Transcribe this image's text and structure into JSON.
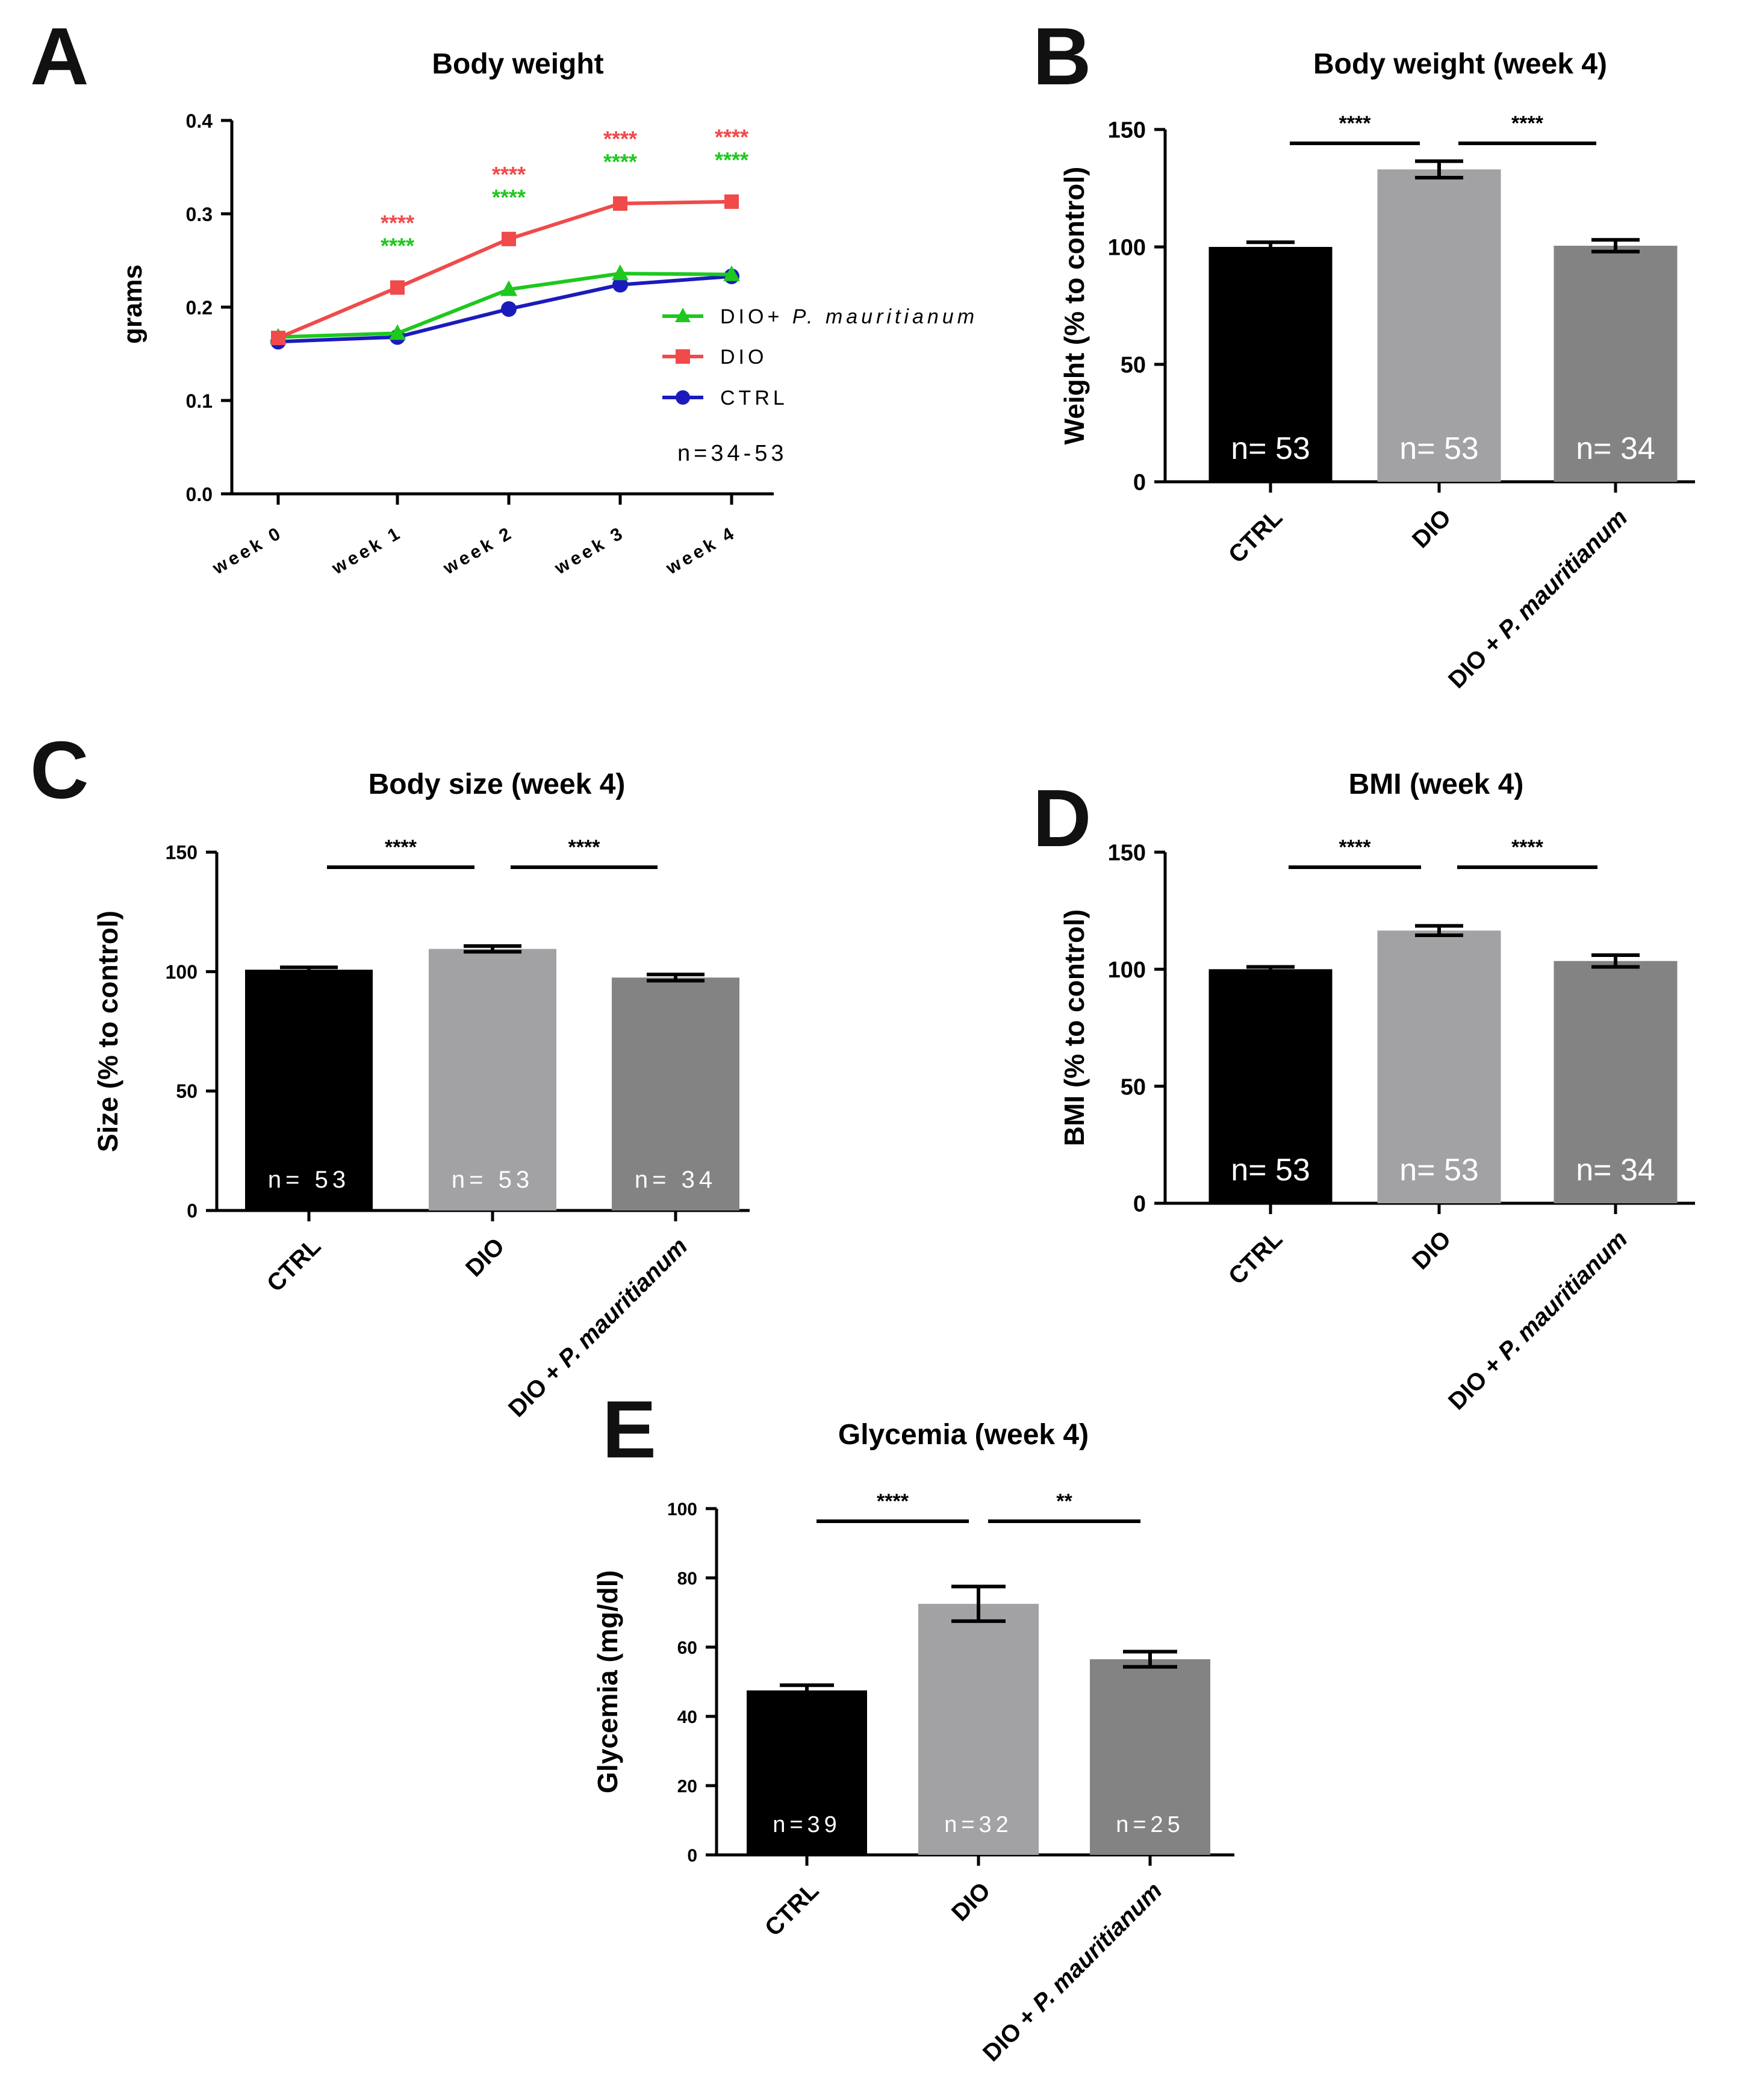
{
  "colors": {
    "ctrl": "#000000",
    "dio": "#a2a2a4",
    "dio_pm": "#838383",
    "line_ctrl": "#1b1bbd",
    "line_dio": "#f04a4a",
    "line_pm": "#1ec81e",
    "sig_red": "#f04a4a",
    "sig_green": "#1ec81e"
  },
  "chart_data": [
    {
      "panel": "A",
      "type": "line",
      "title": "Body weight",
      "xlabel": "",
      "ylabel": "grams",
      "ylim": [
        0,
        0.4
      ],
      "yticks": [
        "0.0",
        "0.1",
        "0.2",
        "0.3",
        "0.4"
      ],
      "categories": [
        "week 0",
        "week 1",
        "week 2",
        "week 3",
        "week 4"
      ],
      "series": [
        {
          "name": "DIO+P. mauritianum",
          "name_plain": "DIO+",
          "name_italic": "P. mauritianum",
          "marker": "triangle",
          "values": [
            0.168,
            0.172,
            0.219,
            0.236,
            0.235
          ]
        },
        {
          "name": "DIO",
          "marker": "square",
          "values": [
            0.167,
            0.221,
            0.273,
            0.311,
            0.313
          ]
        },
        {
          "name": "CTRL",
          "marker": "circle",
          "values": [
            0.163,
            0.168,
            0.198,
            0.224,
            0.233
          ]
        }
      ],
      "significance": [
        {
          "category": "week 1",
          "red": "****",
          "green": "****"
        },
        {
          "category": "week 2",
          "red": "****",
          "green": "****"
        },
        {
          "category": "week 3",
          "red": "****",
          "green": "****"
        },
        {
          "category": "week 4",
          "red": "****",
          "green": "****"
        }
      ],
      "note": "n=34-53",
      "legend_position": "right"
    },
    {
      "panel": "B",
      "type": "bar",
      "title": "Body weight (week 4)",
      "ylabel": "Weight (% to control)",
      "ylim": [
        0,
        150
      ],
      "yticks": [
        "0",
        "50",
        "100",
        "150"
      ],
      "categories": [
        "CTRL",
        "DIO",
        "DIO + P. mauritianum"
      ],
      "values": [
        100,
        133,
        100.5
      ],
      "errors": [
        2,
        3.5,
        2.5
      ],
      "n_labels": [
        "n= 53",
        "n= 53",
        "n= 34"
      ],
      "significance": [
        {
          "from": "CTRL",
          "to": "DIO",
          "label": "****"
        },
        {
          "from": "DIO",
          "to": "DIO + P. mauritianum",
          "label": "****"
        }
      ]
    },
    {
      "panel": "C",
      "type": "bar",
      "title": "Body size (week 4)",
      "ylabel": "Size (% to control)",
      "ylim": [
        0,
        150
      ],
      "yticks": [
        "0",
        "50",
        "100",
        "150"
      ],
      "categories": [
        "CTRL",
        "DIO",
        "DIO + P. mauritianum"
      ],
      "values": [
        100.8,
        109.5,
        97.5
      ],
      "errors": [
        1,
        1.2,
        1.3
      ],
      "n_labels": [
        "n= 53",
        "n= 53",
        "n= 34"
      ],
      "significance": [
        {
          "from": "CTRL",
          "to": "DIO",
          "label": "****"
        },
        {
          "from": "DIO",
          "to": "DIO + P. mauritianum",
          "label": "****"
        }
      ]
    },
    {
      "panel": "D",
      "type": "bar",
      "title": "BMI (week 4)",
      "ylabel": "BMI (% to control)",
      "ylim": [
        0,
        150
      ],
      "yticks": [
        "0",
        "50",
        "100",
        "150"
      ],
      "categories": [
        "CTRL",
        "DIO",
        "DIO + P. mauritianum"
      ],
      "values": [
        100,
        116.5,
        103.5
      ],
      "errors": [
        1,
        2,
        2.5
      ],
      "n_labels": [
        "n= 53",
        "n= 53",
        "n= 34"
      ],
      "significance": [
        {
          "from": "CTRL",
          "to": "DIO",
          "label": "****"
        },
        {
          "from": "DIO",
          "to": "DIO + P. mauritianum",
          "label": "****"
        }
      ]
    },
    {
      "panel": "E",
      "type": "bar",
      "title": "Glycemia (week 4)",
      "ylabel": "Glycemia (mg/dl)",
      "ylim": [
        0,
        100
      ],
      "yticks": [
        "0",
        "20",
        "40",
        "60",
        "80",
        "100"
      ],
      "categories": [
        "CTRL",
        "DIO",
        "DIO + P. mauritianum"
      ],
      "values": [
        47.5,
        72.5,
        56.5
      ],
      "errors": [
        1.5,
        5,
        2.2
      ],
      "n_labels": [
        "n=39",
        "n=32",
        "n=25"
      ],
      "significance": [
        {
          "from": "CTRL",
          "to": "DIO",
          "label": "****"
        },
        {
          "from": "DIO",
          "to": "DIO + P. mauritianum",
          "label": "**"
        }
      ]
    }
  ]
}
